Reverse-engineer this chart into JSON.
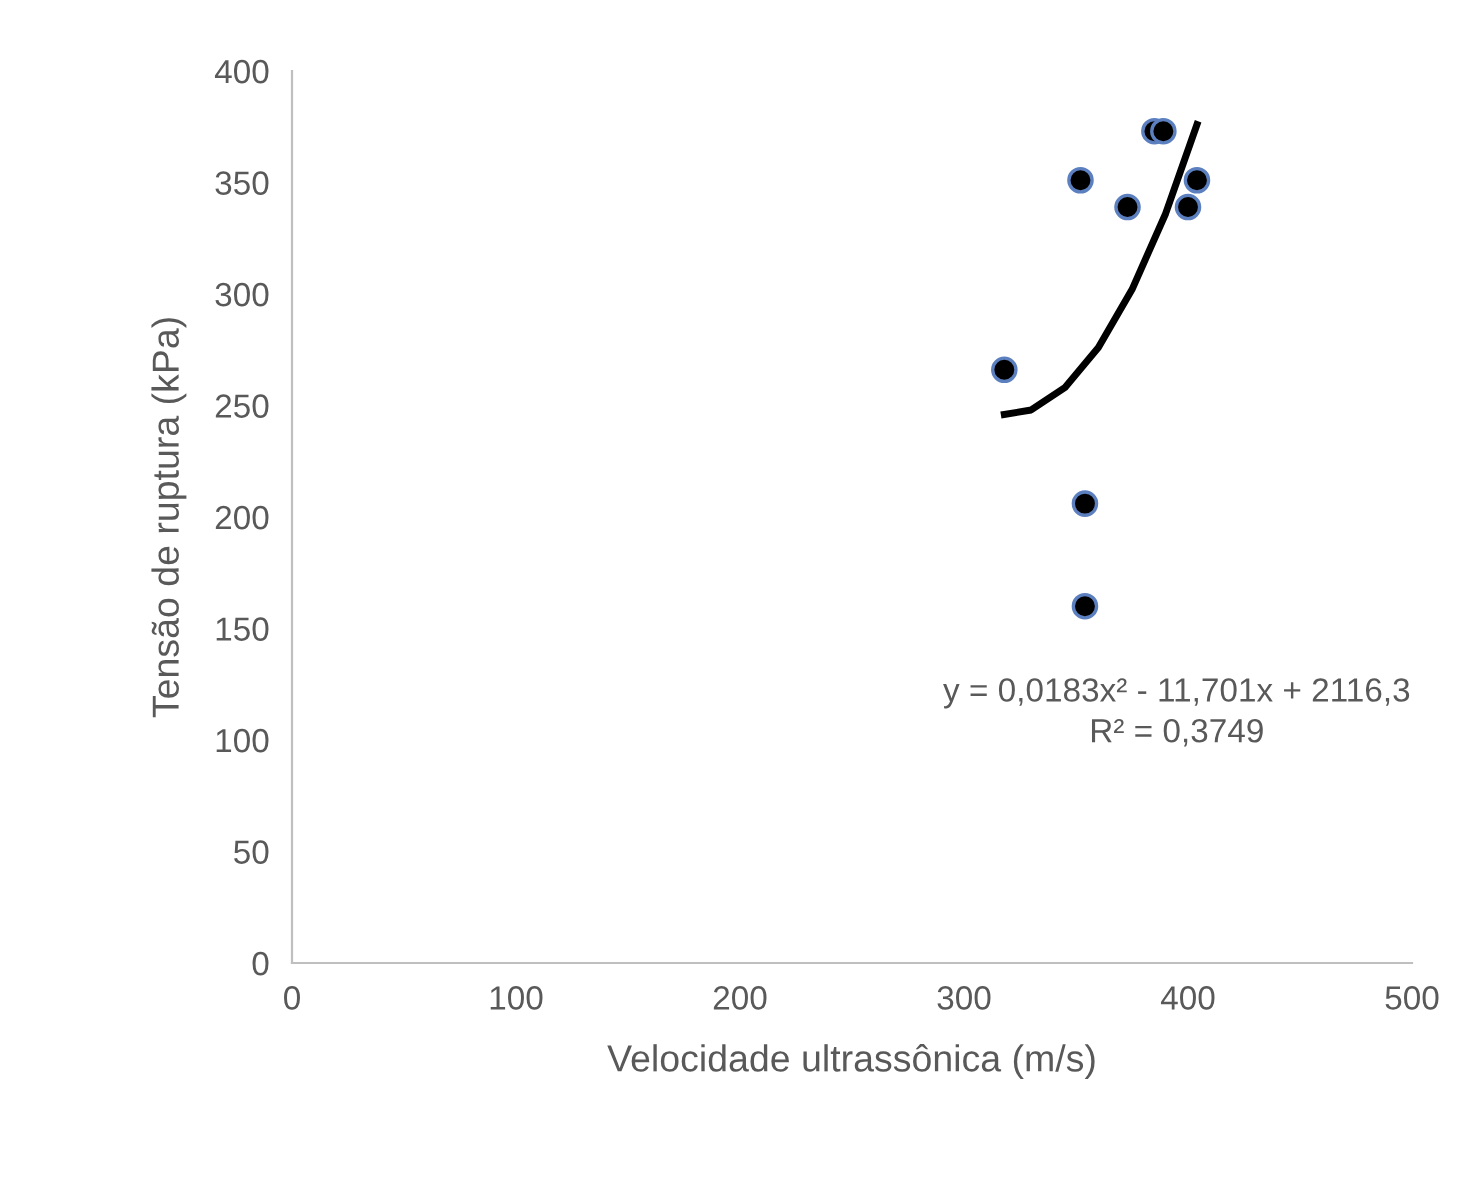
{
  "chart_data": {
    "type": "scatter",
    "xlabel": "Velocidade ultrassônica (m/s)",
    "ylabel": "Tensão de ruptura (kPa)",
    "xlim": [
      0,
      500
    ],
    "xticks": [
      0,
      100,
      200,
      300,
      400,
      500
    ],
    "ylim": [
      0,
      400
    ],
    "yticks": [
      0,
      50,
      100,
      150,
      200,
      250,
      300,
      350,
      400
    ],
    "grid": false,
    "legend": false,
    "marker": "circle",
    "series": [
      {
        "color": "#000000",
        "x": [
          318,
          352,
          373,
          385,
          389,
          404,
          400,
          354,
          354
        ],
        "values": [
          266,
          351,
          339,
          373,
          373,
          351,
          339,
          206,
          160
        ]
      },
      {
        "type": "line",
        "color": "#000000",
        "line_style": "solid",
        "marker": "none",
        "x": [
          318,
          330,
          345,
          360,
          375,
          390,
          404
        ],
        "values": [
          246,
          248,
          258,
          276,
          302,
          336,
          376
        ]
      }
    ],
    "annotations": [
      "y = 0,0183x² - 11,701x + 2116,3\nR² = 0,3749"
    ]
  }
}
